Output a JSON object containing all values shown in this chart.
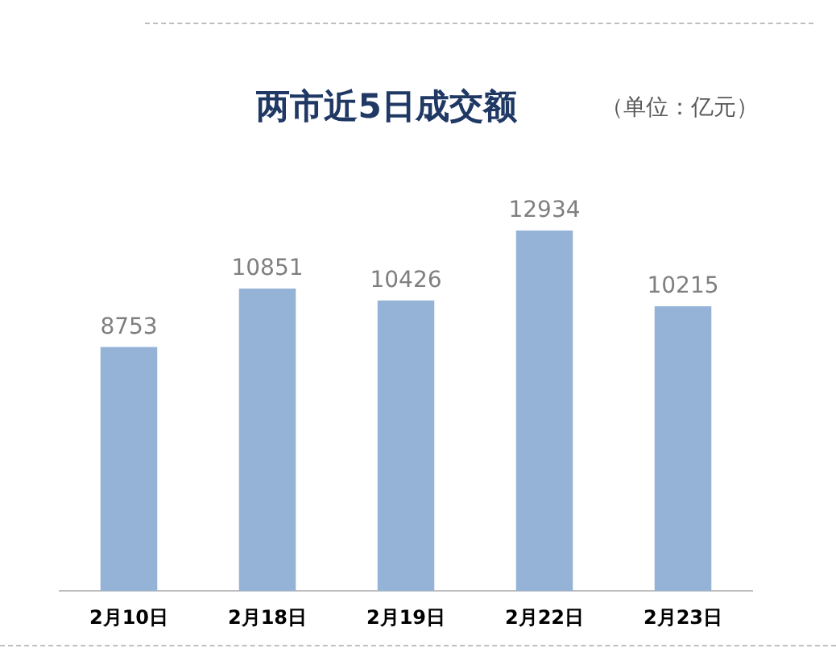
{
  "chart_data": {
    "type": "bar",
    "title": "两市近5日成交额",
    "annotations": [
      "（单位：亿元）"
    ],
    "categories": [
      "2月10日",
      "2月18日",
      "2月19日",
      "2月22日",
      "2月23日"
    ],
    "values": [
      8753,
      10851,
      10426,
      12934,
      10215
    ],
    "color": "#95b3d7",
    "data_labels": true,
    "grid": false,
    "legend": false
  }
}
